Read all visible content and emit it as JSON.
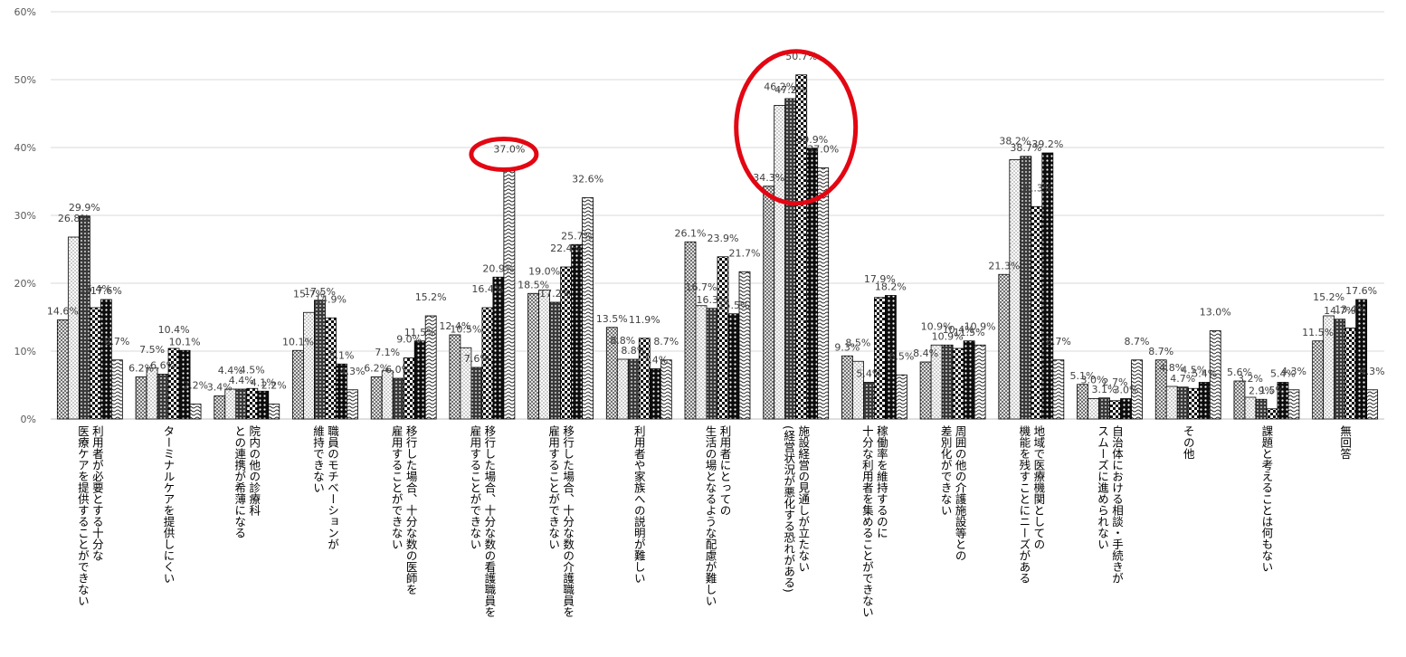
{
  "chart_data": {
    "type": "bar",
    "ylim": [
      0,
      60
    ],
    "yticks": [
      "0%",
      "10%",
      "20%",
      "30%",
      "40%",
      "50%",
      "60%"
    ],
    "grid": true,
    "categories": [
      [
        "利用者が必要とする十分な",
        "医療ケアを提供することができない"
      ],
      [
        "ターミナルケアを提供しにくい"
      ],
      [
        "院内の他の診療科",
        "との連携が希薄になる"
      ],
      [
        "職員のモチベーションが",
        "維持できない"
      ],
      [
        "移行した場合、十分な数の医師を",
        "雇用することができない"
      ],
      [
        "移行した場合、十分な数の看護職員を",
        "雇用することができない"
      ],
      [
        "移行した場合、十分な数の介護職員を",
        "雇用することができない"
      ],
      [
        "利用者や家族への説明が難しい"
      ],
      [
        "利用者にとっての",
        "生活の場となるような配慮が難しい"
      ],
      [
        "施設経営の見通しが立たない",
        "(経営状況が悪化する恐れがある)"
      ],
      [
        "稼働率を維持するのに",
        "十分な利用者を集めることができない"
      ],
      [
        "周囲の他の介護施設等との",
        "差別化ができない"
      ],
      [
        "地域で医療機関としての",
        "機能を残すことにニーズがある"
      ],
      [
        "自治体における相談・手続きが",
        "スムーズに進められない"
      ],
      [
        "その他"
      ],
      [
        "課題と考えることは何もない"
      ],
      [
        "無回答"
      ]
    ],
    "values": [
      [
        14.6,
        26.8,
        29.9,
        16.4,
        17.6,
        8.7
      ],
      [
        6.2,
        7.5,
        6.6,
        10.4,
        10.1,
        2.2
      ],
      [
        3.4,
        4.4,
        4.4,
        4.5,
        4.1,
        2.2
      ],
      [
        10.1,
        15.7,
        17.5,
        14.9,
        8.1,
        4.3
      ],
      [
        6.2,
        7.1,
        6.0,
        9.0,
        11.5,
        15.2
      ],
      [
        12.4,
        10.5,
        7.6,
        16.4,
        20.9,
        37.0
      ],
      [
        18.5,
        19.0,
        17.2,
        22.4,
        25.7,
        32.6
      ],
      [
        13.5,
        8.8,
        8.8,
        11.9,
        7.4,
        8.7
      ],
      [
        26.1,
        16.7,
        16.3,
        23.9,
        15.5,
        21.7
      ],
      [
        34.3,
        46.2,
        47.2,
        50.7,
        39.9,
        37.0
      ],
      [
        9.3,
        8.5,
        5.4,
        17.9,
        18.2,
        6.5
      ],
      [
        8.4,
        10.9,
        10.9,
        10.4,
        11.5,
        10.9
      ],
      [
        21.3,
        38.2,
        38.7,
        31.3,
        39.2,
        8.7
      ],
      [
        5.1,
        3.0,
        3.1,
        2.7,
        3.0,
        8.7
      ],
      [
        8.7,
        4.8,
        4.7,
        4.5,
        5.4,
        13.0
      ],
      [
        5.6,
        3.2,
        2.9,
        1.5,
        5.4,
        4.3
      ],
      [
        11.5,
        15.2,
        14.7,
        13.4,
        17.6,
        4.3
      ]
    ],
    "data_labels": [
      [
        "14.6%",
        "26.8%",
        "29.9%",
        "16.4%",
        "17.6%",
        "8.7%"
      ],
      [
        "6.2%",
        "7.5%",
        "6.6%",
        "10.4%",
        "10.1%",
        "2.2%"
      ],
      [
        "3.4%",
        "4.4%",
        "4.4%",
        "4.5%",
        "4.1%",
        "2.2%"
      ],
      [
        "10.1%",
        "15.7%",
        "17.5%",
        "14.9%",
        "8.1%",
        "4.3%"
      ],
      [
        "6.2%",
        "7.1%",
        "6.0%",
        "9.0%",
        "11.5%",
        "15.2%"
      ],
      [
        "12.4%",
        "10.5%",
        "7.6%",
        "16.4%",
        "20.9%",
        "37.0%"
      ],
      [
        "18.5%",
        "19.0%",
        "17.2%",
        "22.4%",
        "25.7%",
        "32.6%"
      ],
      [
        "13.5%",
        "8.8%",
        "8.8%",
        "11.9%",
        "7.4%",
        "8.7%"
      ],
      [
        "26.1%",
        "16.7%",
        "16.3%",
        "23.9%",
        "15.5%",
        "21.7%"
      ],
      [
        "34.3%",
        "46.2%",
        "47.2%",
        "50.7%",
        "39.9%",
        "37.0%"
      ],
      [
        "9.3%",
        "8.5%",
        "5.4%",
        "17.9%",
        "18.2%",
        "6.5%"
      ],
      [
        "8.4%",
        "10.9%",
        "10.9%",
        "10.4%",
        "11.5%",
        "10.9%"
      ],
      [
        "21.3%",
        "38.2%",
        "38.7%",
        "31.3%",
        "39.2%",
        "8.7%"
      ],
      [
        "5.1%",
        "3.0%",
        "3.1%",
        "2.7%",
        "3.0%",
        "8.7%"
      ],
      [
        "8.7%",
        "4.8%",
        "4.7%",
        "4.5%",
        "5.4%",
        "13.0%"
      ],
      [
        "5.6%",
        "3.2%",
        "2.9%",
        "1.5%",
        "5.4%",
        "4.3%"
      ],
      [
        "11.5%",
        "15.2%",
        "14.7%",
        "13.4%",
        "17.6%",
        "4.3%"
      ]
    ],
    "series_patterns": [
      "crosshatch",
      "sparse-dots",
      "dense-crosshatch",
      "checker",
      "polka-dark",
      "wave"
    ],
    "highlights": [
      {
        "shape": "circle",
        "color": "#e30613",
        "category_index": 5,
        "series_index": 5
      },
      {
        "shape": "circle",
        "color": "#e30613",
        "category_index": 9
      }
    ],
    "colors": {
      "bar_stroke": "#000000",
      "grid": "#d9d9d9",
      "tick_text": "#595959",
      "highlight": "#e30613"
    }
  }
}
